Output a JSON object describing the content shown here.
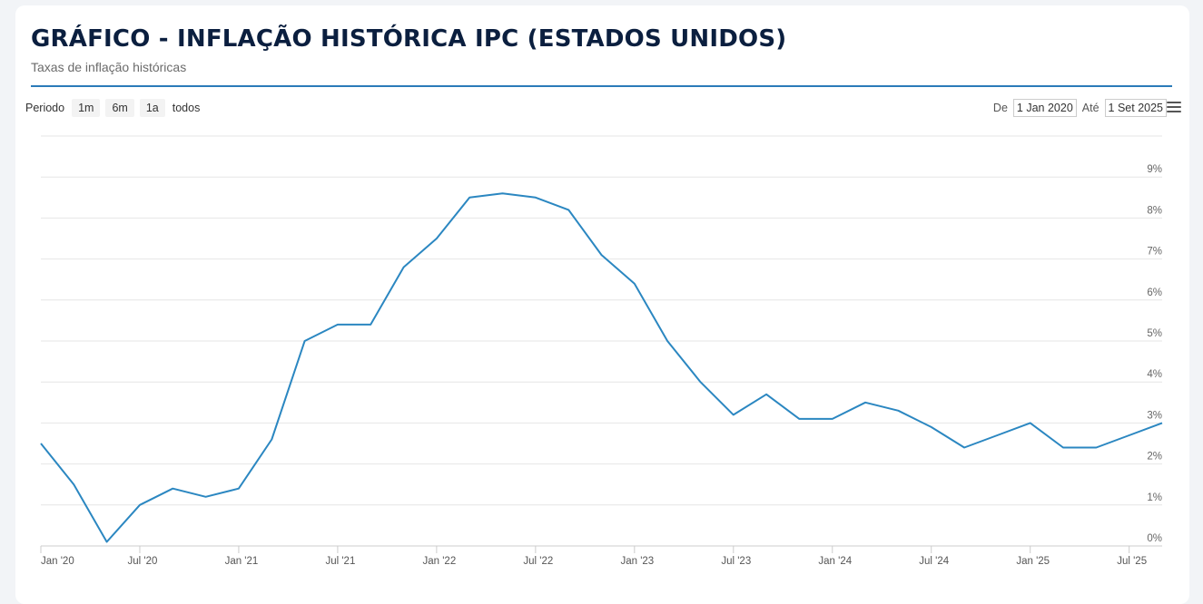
{
  "header": {
    "title": "GRÁFICO - INFLAÇÃO HISTÓRICA IPC (ESTADOS UNIDOS)",
    "subtitle": "Taxas de inflação históricas"
  },
  "range_selector": {
    "label": "Periodo",
    "buttons": [
      "1m",
      "6m",
      "1a",
      "todos"
    ],
    "from_label": "De",
    "from_value": "1 Jan 2020",
    "to_label": "Até",
    "to_value": "1 Set 2025"
  },
  "menu": {
    "icon": "hamburger-menu-icon"
  },
  "colors": {
    "line": "#2b87c1",
    "accent": "#2b7bb9",
    "title": "#0b1f3f"
  },
  "chart_data": {
    "type": "line",
    "title": "GRÁFICO - INFLAÇÃO HISTÓRICA IPC (ESTADOS UNIDOS)",
    "subtitle": "Taxas de inflação históricas",
    "xlabel": "",
    "ylabel": "",
    "ylim": [
      0,
      10
    ],
    "xlim": [
      "2020-01",
      "2025-09"
    ],
    "y_ticks": [
      "0%",
      "1%",
      "2%",
      "3%",
      "4%",
      "5%",
      "6%",
      "7%",
      "8%",
      "9%"
    ],
    "x_ticks": [
      {
        "date": "2020-01",
        "label": "Jan '20"
      },
      {
        "date": "2020-07",
        "label": "Jul '20"
      },
      {
        "date": "2021-01",
        "label": "Jan '21"
      },
      {
        "date": "2021-07",
        "label": "Jul '21"
      },
      {
        "date": "2022-01",
        "label": "Jan '22"
      },
      {
        "date": "2022-07",
        "label": "Jul '22"
      },
      {
        "date": "2023-01",
        "label": "Jan '23"
      },
      {
        "date": "2023-07",
        "label": "Jul '23"
      },
      {
        "date": "2024-01",
        "label": "Jan '24"
      },
      {
        "date": "2024-07",
        "label": "Jul '24"
      },
      {
        "date": "2025-01",
        "label": "Jan '25"
      },
      {
        "date": "2025-07",
        "label": "Jul '25"
      }
    ],
    "grid": true,
    "series": [
      {
        "points": [
          [
            "2020-01",
            2.5
          ],
          [
            "2020-03",
            1.5
          ],
          [
            "2020-05",
            0.1
          ],
          [
            "2020-07",
            1.0
          ],
          [
            "2020-09",
            1.4
          ],
          [
            "2020-11",
            1.2
          ],
          [
            "2021-01",
            1.4
          ],
          [
            "2021-03",
            2.6
          ],
          [
            "2021-05",
            5.0
          ],
          [
            "2021-07",
            5.4
          ],
          [
            "2021-09",
            5.4
          ],
          [
            "2021-11",
            6.8
          ],
          [
            "2022-01",
            7.5
          ],
          [
            "2022-03",
            8.5
          ],
          [
            "2022-05",
            8.6
          ],
          [
            "2022-07",
            8.5
          ],
          [
            "2022-09",
            8.2
          ],
          [
            "2022-11",
            7.1
          ],
          [
            "2023-01",
            6.4
          ],
          [
            "2023-03",
            5.0
          ],
          [
            "2023-05",
            4.0
          ],
          [
            "2023-07",
            3.2
          ],
          [
            "2023-09",
            3.7
          ],
          [
            "2023-11",
            3.1
          ],
          [
            "2024-01",
            3.1
          ],
          [
            "2024-03",
            3.5
          ],
          [
            "2024-05",
            3.3
          ],
          [
            "2024-07",
            2.9
          ],
          [
            "2024-09",
            2.4
          ],
          [
            "2024-11",
            2.7
          ],
          [
            "2025-01",
            3.0
          ],
          [
            "2025-03",
            2.4
          ],
          [
            "2025-05",
            2.4
          ],
          [
            "2025-07",
            2.7
          ],
          [
            "2025-09",
            3.0
          ]
        ]
      }
    ]
  }
}
